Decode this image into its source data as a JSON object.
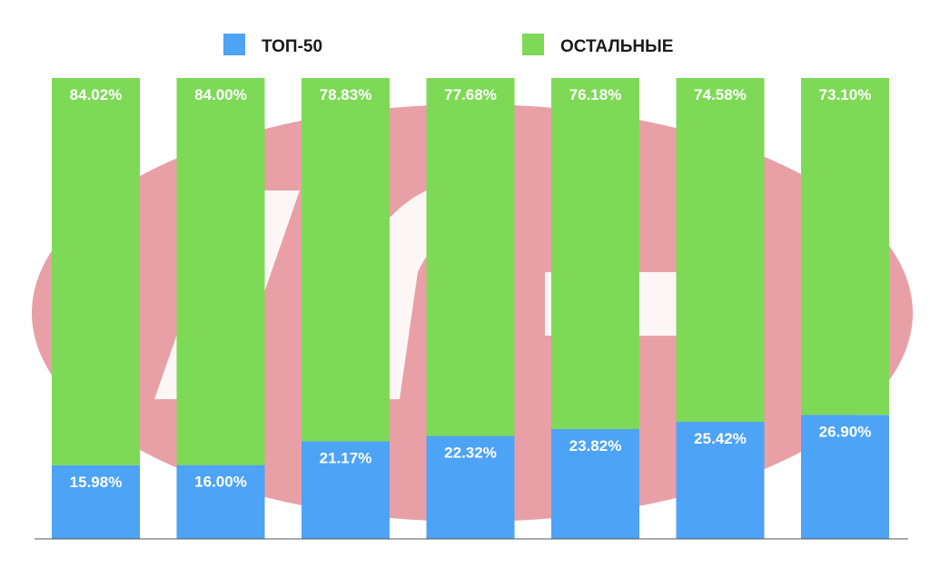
{
  "chart_data": {
    "type": "bar",
    "stacked": true,
    "percent_stacked": true,
    "title": "",
    "xlabel": "",
    "ylabel": "",
    "ylim": [
      0,
      100
    ],
    "grid": false,
    "legend_position": "top",
    "categories": [
      "",
      "",
      "",
      "",
      "",
      "",
      ""
    ],
    "series": [
      {
        "name": "ТОП-50",
        "color": "#4da3f5",
        "values": [
          15.98,
          16.0,
          21.17,
          22.32,
          23.82,
          25.42,
          26.9
        ],
        "labels": [
          "15.98%",
          "16.00%",
          "21.17%",
          "22.32%",
          "23.82%",
          "25.42%",
          "26.90%"
        ]
      },
      {
        "name": "ОСТАЛЬНЫЕ",
        "color": "#7ed957",
        "values": [
          84.02,
          84.0,
          78.83,
          77.68,
          76.18,
          74.58,
          73.1
        ],
        "labels": [
          "84.02%",
          "84.00%",
          "78.83%",
          "77.68%",
          "76.18%",
          "74.58%",
          "73.10%"
        ]
      }
    ]
  },
  "watermark": {
    "shape": "ellipse-logo",
    "color": "#e8a0a6"
  }
}
